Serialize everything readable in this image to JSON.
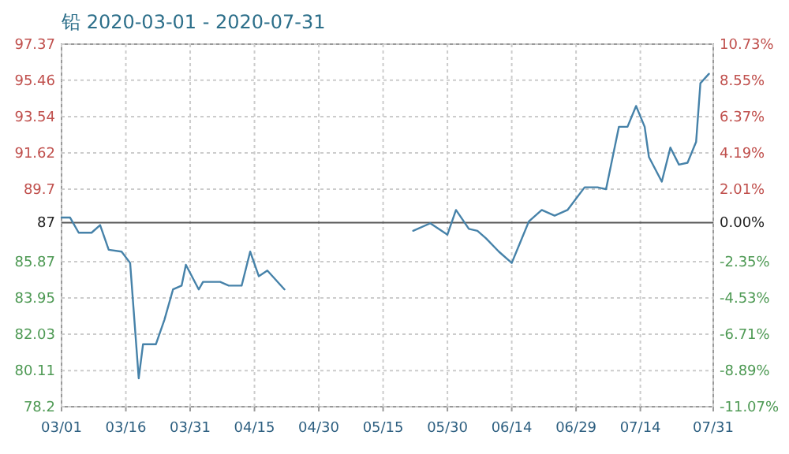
{
  "chart_data": {
    "type": "line",
    "title": "铅 2020-03-01 - 2020-07-31",
    "x": [
      "2020-03-01",
      "2020-03-03",
      "2020-03-05",
      "2020-03-08",
      "2020-03-10",
      "2020-03-12",
      "2020-03-15",
      "2020-03-17",
      "2020-03-19",
      "2020-03-20",
      "2020-03-23",
      "2020-03-25",
      "2020-03-27",
      "2020-03-29",
      "2020-03-30",
      "2020-04-02",
      "2020-04-03",
      "2020-04-07",
      "2020-04-09",
      "2020-04-12",
      "2020-04-14",
      "2020-04-16",
      "2020-04-18",
      "2020-04-22",
      "2020-04-30",
      "2020-05-22",
      "2020-05-26",
      "2020-05-30",
      "2020-06-01",
      "2020-06-04",
      "2020-06-06",
      "2020-06-08",
      "2020-06-11",
      "2020-06-14",
      "2020-06-16",
      "2020-06-18",
      "2020-06-21",
      "2020-06-24",
      "2020-06-27",
      "2020-07-01",
      "2020-07-04",
      "2020-07-06",
      "2020-07-09",
      "2020-07-11",
      "2020-07-13",
      "2020-07-15",
      "2020-07-16",
      "2020-07-19",
      "2020-07-21",
      "2020-07-23",
      "2020-07-25",
      "2020-07-27",
      "2020-07-28",
      "2020-07-30"
    ],
    "series": [
      {
        "color": "#4682a9",
        "values": [
          88.2,
          88.2,
          87.4,
          87.4,
          87.8,
          86.5,
          86.4,
          85.8,
          79.7,
          81.5,
          81.5,
          82.8,
          84.4,
          84.6,
          85.7,
          84.4,
          84.8,
          84.8,
          84.6,
          84.6,
          86.4,
          85.1,
          85.4,
          84.4,
          null,
          87.5,
          87.9,
          87.3,
          88.6,
          87.6,
          87.5,
          87.1,
          86.4,
          85.8,
          86.9,
          88.0,
          88.6,
          88.3,
          88.6,
          89.8,
          89.8,
          89.7,
          93.0,
          93.0,
          94.1,
          93.0,
          91.4,
          90.1,
          91.9,
          91.0,
          91.1,
          92.2,
          95.3,
          95.8
        ]
      }
    ],
    "xlim": [
      "2020-03-01",
      "2020-07-31"
    ],
    "xticks": [
      {
        "value": "2020-03-01",
        "label": "03/01"
      },
      {
        "value": "2020-03-16",
        "label": "03/16"
      },
      {
        "value": "2020-03-31",
        "label": "03/31"
      },
      {
        "value": "2020-04-15",
        "label": "04/15"
      },
      {
        "value": "2020-04-30",
        "label": "04/30"
      },
      {
        "value": "2020-05-15",
        "label": "05/15"
      },
      {
        "value": "2020-05-30",
        "label": "05/30"
      },
      {
        "value": "2020-06-14",
        "label": "06/14"
      },
      {
        "value": "2020-06-29",
        "label": "06/29"
      },
      {
        "value": "2020-07-14",
        "label": "07/14"
      },
      {
        "value": "2020-07-31",
        "label": "07/31"
      }
    ],
    "ylim": [
      78.2,
      97.37
    ],
    "yticks": [
      97.37,
      95.46,
      93.54,
      91.62,
      89.7,
      85.87,
      83.95,
      82.03,
      80.11,
      78.2
    ],
    "y2lim": [
      -11.07,
      10.73
    ],
    "y2ticks": [
      {
        "value": 10.73,
        "label": "10.73%"
      },
      {
        "value": 8.55,
        "label": "8.55%"
      },
      {
        "value": 6.37,
        "label": "6.37%"
      },
      {
        "value": 4.19,
        "label": "4.19%"
      },
      {
        "value": 2.01,
        "label": "2.01%"
      },
      {
        "value": 0,
        "label": "0.00%"
      },
      {
        "value": -2.35,
        "label": "-2.35%"
      },
      {
        "value": -4.53,
        "label": "-4.53%"
      },
      {
        "value": -6.71,
        "label": "-6.71%"
      },
      {
        "value": -8.89,
        "label": "-8.89%"
      },
      {
        "value": -11.07,
        "label": "-11.07%"
      }
    ],
    "ref_lines": [
      {
        "axis": "y2",
        "value": 0,
        "color": "#555555"
      }
    ],
    "annotations": [
      "87"
    ],
    "grid": true,
    "marker": "none",
    "line_style": "solid"
  }
}
